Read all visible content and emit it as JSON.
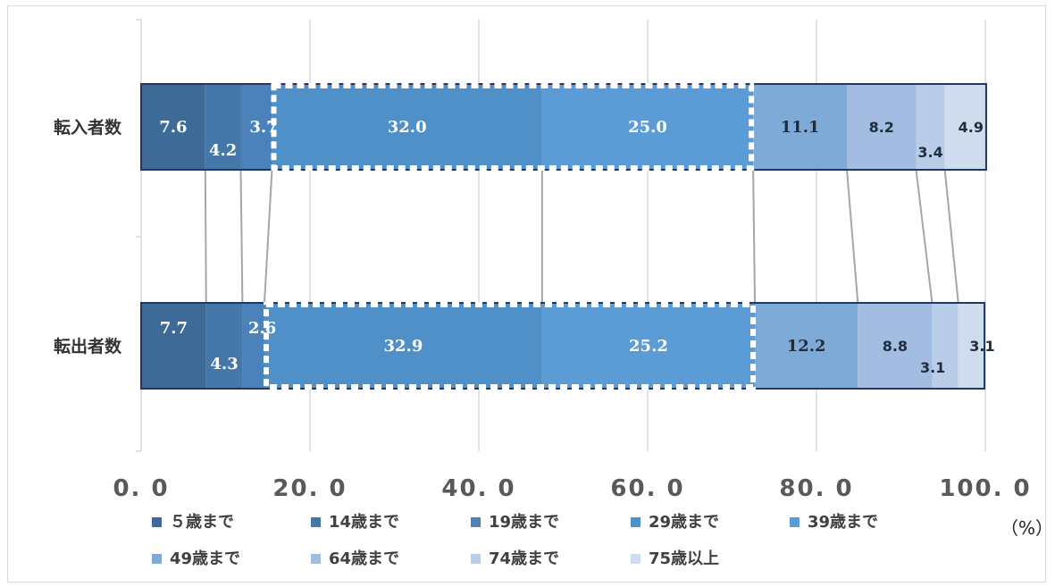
{
  "chart_data": {
    "type": "bar",
    "orientation": "horizontal",
    "stacked": true,
    "categories": [
      "転入者数",
      "転出者数"
    ],
    "series": [
      {
        "name": "５歳まで",
        "values": [
          7.6,
          7.7
        ],
        "color": "#3d6a96"
      },
      {
        "name": "14歳まで",
        "values": [
          4.2,
          4.3
        ],
        "color": "#4577a8"
      },
      {
        "name": "19歳まで",
        "values": [
          3.7,
          2.6
        ],
        "color": "#4a82b9"
      },
      {
        "name": "29歳まで",
        "values": [
          32.0,
          32.9
        ],
        "color": "#5090c8"
      },
      {
        "name": "39歳まで",
        "values": [
          25.0,
          25.2
        ],
        "color": "#5b9cd6"
      },
      {
        "name": "49歳まで",
        "values": [
          11.1,
          12.2
        ],
        "color": "#7eaad8"
      },
      {
        "name": "64歳まで",
        "values": [
          8.2,
          8.8
        ],
        "color": "#a2bde1"
      },
      {
        "name": "74歳まで",
        "values": [
          3.4,
          3.1
        ],
        "color": "#b9cde9"
      },
      {
        "name": "75歳以上",
        "values": [
          4.9,
          3.1
        ],
        "color": "#cfdcee"
      }
    ],
    "xlim": [
      0,
      100
    ],
    "xticks": [
      "0.0",
      "20.0",
      "40.0",
      "60.0",
      "80.0",
      "100.0"
    ],
    "unit_label": "（%）",
    "highlight_series": [
      "29歳まで",
      "39歳まで"
    ],
    "grid": true,
    "legend_position": "bottom"
  }
}
